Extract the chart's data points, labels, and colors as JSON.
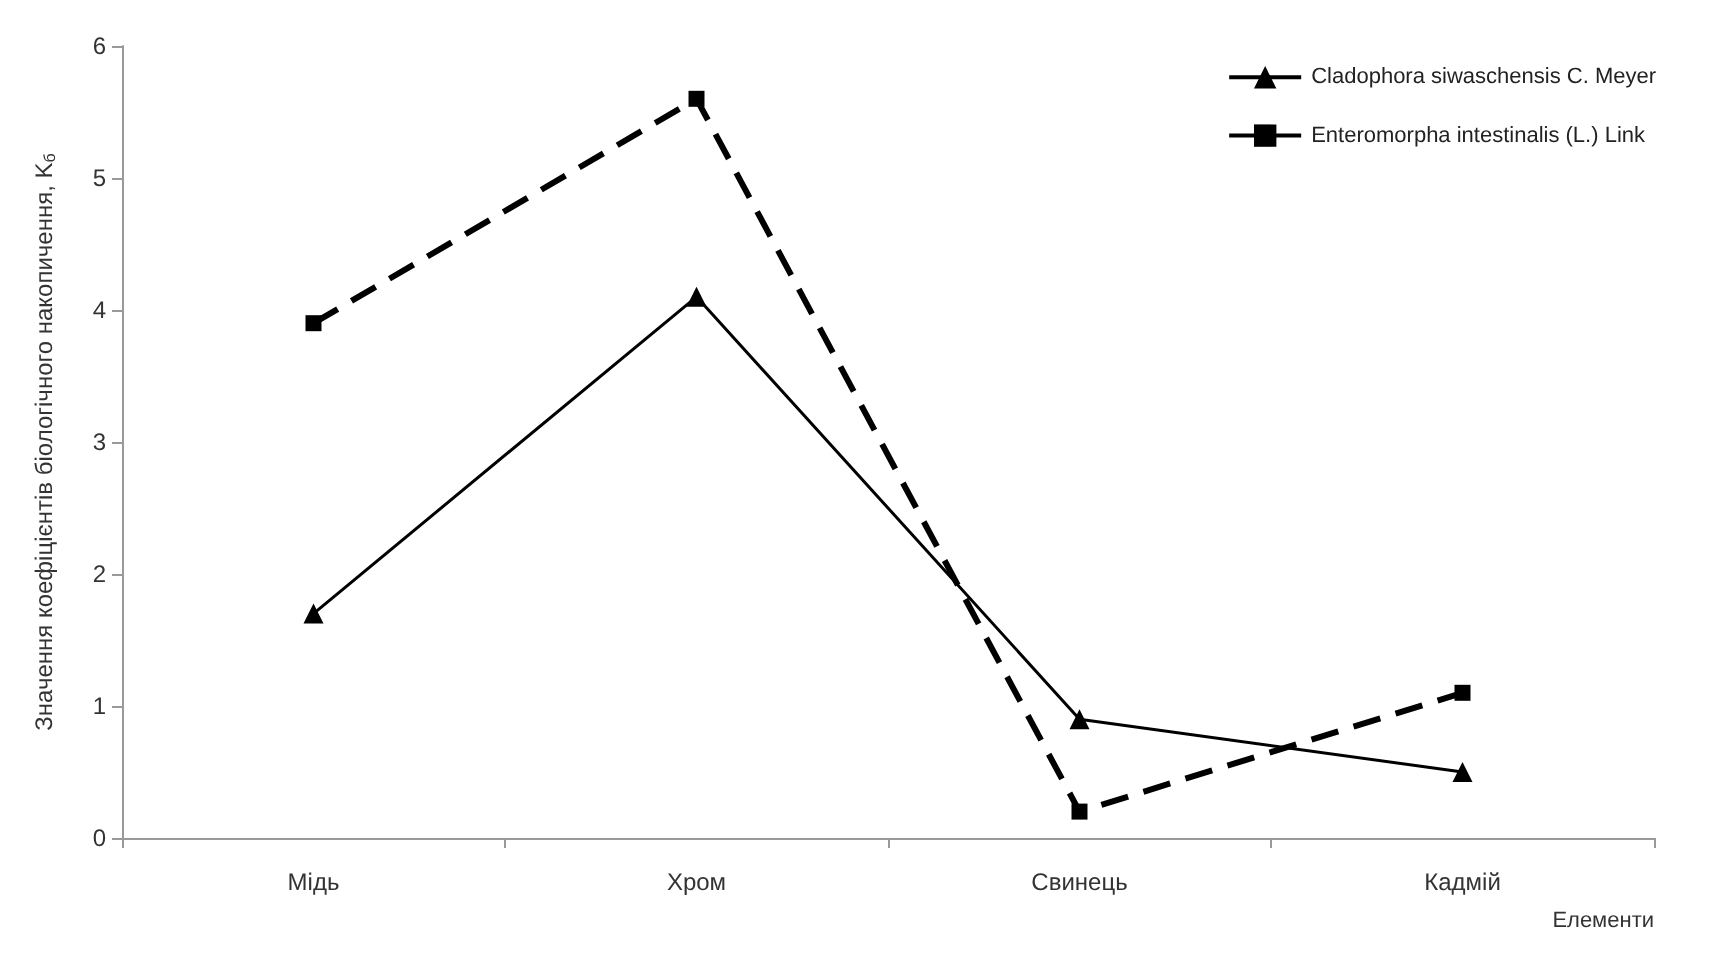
{
  "chart_data": {
    "type": "line",
    "xlabel": "Елементи",
    "ylabel": "Значення коефіцієнтів біологічного накопичення, K$_{б}$",
    "categories": [
      "Мідь",
      "Хром",
      "Свинець",
      "Кадмій"
    ],
    "series": [
      {
        "name": "Cladophora siwaschensis C. Meyer",
        "color": "#000000",
        "values": [
          1.7,
          4.1,
          0.9,
          0.5
        ],
        "marker": "triangle",
        "line_style": "solid"
      },
      {
        "name": "Enteromorpha intestinalis (L.) Link",
        "color": "#000000",
        "values": [
          3.9,
          5.6,
          0.2,
          1.1
        ],
        "marker": "square",
        "line_style": "dashed"
      }
    ],
    "ylim": [
      0,
      6
    ],
    "yticks": [
      0,
      1,
      2,
      3,
      4,
      5,
      6
    ],
    "grid": false,
    "legend": "top right"
  }
}
